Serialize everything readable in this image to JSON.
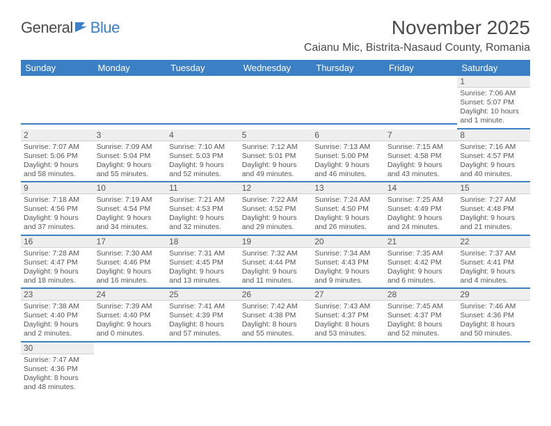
{
  "logo": {
    "part1": "General",
    "part2": "Blue"
  },
  "title": "November 2025",
  "location": "Caianu Mic, Bistrita-Nasaud County, Romania",
  "colors": {
    "header_bg": "#3b7fc4",
    "header_text": "#ffffff",
    "daynum_bg": "#eeeeee",
    "border_accent": "#3b7fc4",
    "text": "#555555",
    "logo_gray": "#4a4a4a",
    "logo_blue": "#3b7fc4"
  },
  "weekdays": [
    "Sunday",
    "Monday",
    "Tuesday",
    "Wednesday",
    "Thursday",
    "Friday",
    "Saturday"
  ],
  "weeks": [
    [
      null,
      null,
      null,
      null,
      null,
      null,
      {
        "n": "1",
        "sr": "Sunrise: 7:06 AM",
        "ss": "Sunset: 5:07 PM",
        "dl": "Daylight: 10 hours and 1 minute."
      }
    ],
    [
      {
        "n": "2",
        "sr": "Sunrise: 7:07 AM",
        "ss": "Sunset: 5:06 PM",
        "dl": "Daylight: 9 hours and 58 minutes."
      },
      {
        "n": "3",
        "sr": "Sunrise: 7:09 AM",
        "ss": "Sunset: 5:04 PM",
        "dl": "Daylight: 9 hours and 55 minutes."
      },
      {
        "n": "4",
        "sr": "Sunrise: 7:10 AM",
        "ss": "Sunset: 5:03 PM",
        "dl": "Daylight: 9 hours and 52 minutes."
      },
      {
        "n": "5",
        "sr": "Sunrise: 7:12 AM",
        "ss": "Sunset: 5:01 PM",
        "dl": "Daylight: 9 hours and 49 minutes."
      },
      {
        "n": "6",
        "sr": "Sunrise: 7:13 AM",
        "ss": "Sunset: 5:00 PM",
        "dl": "Daylight: 9 hours and 46 minutes."
      },
      {
        "n": "7",
        "sr": "Sunrise: 7:15 AM",
        "ss": "Sunset: 4:58 PM",
        "dl": "Daylight: 9 hours and 43 minutes."
      },
      {
        "n": "8",
        "sr": "Sunrise: 7:16 AM",
        "ss": "Sunset: 4:57 PM",
        "dl": "Daylight: 9 hours and 40 minutes."
      }
    ],
    [
      {
        "n": "9",
        "sr": "Sunrise: 7:18 AM",
        "ss": "Sunset: 4:56 PM",
        "dl": "Daylight: 9 hours and 37 minutes."
      },
      {
        "n": "10",
        "sr": "Sunrise: 7:19 AM",
        "ss": "Sunset: 4:54 PM",
        "dl": "Daylight: 9 hours and 34 minutes."
      },
      {
        "n": "11",
        "sr": "Sunrise: 7:21 AM",
        "ss": "Sunset: 4:53 PM",
        "dl": "Daylight: 9 hours and 32 minutes."
      },
      {
        "n": "12",
        "sr": "Sunrise: 7:22 AM",
        "ss": "Sunset: 4:52 PM",
        "dl": "Daylight: 9 hours and 29 minutes."
      },
      {
        "n": "13",
        "sr": "Sunrise: 7:24 AM",
        "ss": "Sunset: 4:50 PM",
        "dl": "Daylight: 9 hours and 26 minutes."
      },
      {
        "n": "14",
        "sr": "Sunrise: 7:25 AM",
        "ss": "Sunset: 4:49 PM",
        "dl": "Daylight: 9 hours and 24 minutes."
      },
      {
        "n": "15",
        "sr": "Sunrise: 7:27 AM",
        "ss": "Sunset: 4:48 PM",
        "dl": "Daylight: 9 hours and 21 minutes."
      }
    ],
    [
      {
        "n": "16",
        "sr": "Sunrise: 7:28 AM",
        "ss": "Sunset: 4:47 PM",
        "dl": "Daylight: 9 hours and 18 minutes."
      },
      {
        "n": "17",
        "sr": "Sunrise: 7:30 AM",
        "ss": "Sunset: 4:46 PM",
        "dl": "Daylight: 9 hours and 16 minutes."
      },
      {
        "n": "18",
        "sr": "Sunrise: 7:31 AM",
        "ss": "Sunset: 4:45 PM",
        "dl": "Daylight: 9 hours and 13 minutes."
      },
      {
        "n": "19",
        "sr": "Sunrise: 7:32 AM",
        "ss": "Sunset: 4:44 PM",
        "dl": "Daylight: 9 hours and 11 minutes."
      },
      {
        "n": "20",
        "sr": "Sunrise: 7:34 AM",
        "ss": "Sunset: 4:43 PM",
        "dl": "Daylight: 9 hours and 9 minutes."
      },
      {
        "n": "21",
        "sr": "Sunrise: 7:35 AM",
        "ss": "Sunset: 4:42 PM",
        "dl": "Daylight: 9 hours and 6 minutes."
      },
      {
        "n": "22",
        "sr": "Sunrise: 7:37 AM",
        "ss": "Sunset: 4:41 PM",
        "dl": "Daylight: 9 hours and 4 minutes."
      }
    ],
    [
      {
        "n": "23",
        "sr": "Sunrise: 7:38 AM",
        "ss": "Sunset: 4:40 PM",
        "dl": "Daylight: 9 hours and 2 minutes."
      },
      {
        "n": "24",
        "sr": "Sunrise: 7:39 AM",
        "ss": "Sunset: 4:40 PM",
        "dl": "Daylight: 9 hours and 0 minutes."
      },
      {
        "n": "25",
        "sr": "Sunrise: 7:41 AM",
        "ss": "Sunset: 4:39 PM",
        "dl": "Daylight: 8 hours and 57 minutes."
      },
      {
        "n": "26",
        "sr": "Sunrise: 7:42 AM",
        "ss": "Sunset: 4:38 PM",
        "dl": "Daylight: 8 hours and 55 minutes."
      },
      {
        "n": "27",
        "sr": "Sunrise: 7:43 AM",
        "ss": "Sunset: 4:37 PM",
        "dl": "Daylight: 8 hours and 53 minutes."
      },
      {
        "n": "28",
        "sr": "Sunrise: 7:45 AM",
        "ss": "Sunset: 4:37 PM",
        "dl": "Daylight: 8 hours and 52 minutes."
      },
      {
        "n": "29",
        "sr": "Sunrise: 7:46 AM",
        "ss": "Sunset: 4:36 PM",
        "dl": "Daylight: 8 hours and 50 minutes."
      }
    ],
    [
      {
        "n": "30",
        "sr": "Sunrise: 7:47 AM",
        "ss": "Sunset: 4:36 PM",
        "dl": "Daylight: 8 hours and 48 minutes."
      },
      null,
      null,
      null,
      null,
      null,
      null
    ]
  ]
}
